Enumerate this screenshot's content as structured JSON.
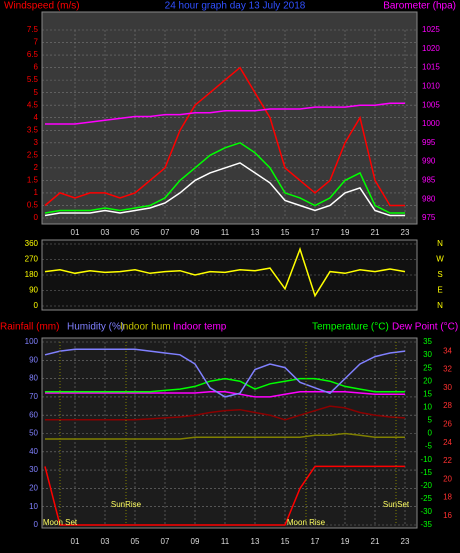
{
  "chart_data": [
    {
      "type": "line",
      "title": "24 hour graph day   13 July 2018",
      "ylabel": "Windspeed (m/s)",
      "y2label": "Barometer (hpa)",
      "x": [
        -1,
        0,
        1,
        2,
        3,
        4,
        5,
        6,
        7,
        8,
        9,
        10,
        11,
        12,
        13,
        14,
        15,
        16,
        17,
        18,
        19,
        20,
        21,
        22,
        23
      ],
      "xlim": [
        -1.2,
        23.8
      ],
      "xticks": [
        {
          "value": 1,
          "label": "01"
        },
        {
          "value": 3,
          "label": "03"
        },
        {
          "value": 5,
          "label": "05"
        },
        {
          "value": 7,
          "label": "07"
        },
        {
          "value": 9,
          "label": "09"
        },
        {
          "value": 11,
          "label": "11"
        },
        {
          "value": 13,
          "label": "13"
        },
        {
          "value": 15,
          "label": "15"
        },
        {
          "value": 17,
          "label": "17"
        },
        {
          "value": 19,
          "label": "19"
        },
        {
          "value": 21,
          "label": "21"
        },
        {
          "value": 23,
          "label": "23"
        }
      ],
      "ylim": [
        0,
        7.5
      ],
      "yticks": [
        0,
        0.5,
        1,
        1.5,
        2,
        2.5,
        3,
        3.5,
        4,
        4.5,
        5,
        5.5,
        6,
        6.5,
        7,
        7.5
      ],
      "y2lim": [
        975,
        1025
      ],
      "y2ticks": [
        975,
        980,
        985,
        990,
        995,
        1000,
        1005,
        1010,
        1015,
        1020,
        1025
      ],
      "grid": true,
      "series": [
        {
          "color": "#ff0000",
          "values": [
            0.5,
            1,
            0.8,
            1,
            1,
            0.8,
            1,
            1.5,
            2,
            3.5,
            4.5,
            5,
            5.5,
            6,
            5,
            4,
            2,
            1.5,
            1,
            1.5,
            3,
            4,
            1.5,
            0.5,
            0.5
          ]
        },
        {
          "color": "#ffffff",
          "values": [
            0.1,
            0.2,
            0.2,
            0.2,
            0.3,
            0.2,
            0.3,
            0.4,
            0.6,
            1,
            1.5,
            1.8,
            2,
            2.2,
            1.8,
            1.4,
            0.7,
            0.5,
            0.3,
            0.5,
            1,
            1.2,
            0.3,
            0.1,
            0.1
          ]
        },
        {
          "color": "#00ff00",
          "values": [
            0.2,
            0.3,
            0.3,
            0.3,
            0.4,
            0.3,
            0.4,
            0.5,
            0.8,
            1.5,
            2,
            2.5,
            2.8,
            3,
            2.6,
            2,
            1,
            0.8,
            0.5,
            0.8,
            1.5,
            1.8,
            0.5,
            0.2,
            0.2
          ]
        },
        {
          "color": "#ff00ff",
          "axis": "y2",
          "values": [
            1000,
            1000,
            1000,
            1000.5,
            1001,
            1001.5,
            1002,
            1002,
            1002.5,
            1002.5,
            1003,
            1003,
            1003.5,
            1003.5,
            1003.5,
            1004,
            1004,
            1004,
            1004.5,
            1004.5,
            1004.5,
            1005,
            1005,
            1005.5,
            1005.5
          ]
        }
      ]
    },
    {
      "type": "line",
      "x": [
        -1,
        0,
        1,
        2,
        3,
        4,
        5,
        6,
        7,
        8,
        9,
        10,
        11,
        12,
        13,
        14,
        15,
        16,
        17,
        18,
        19,
        20,
        21,
        22,
        23
      ],
      "xlim": [
        -1.2,
        23.8
      ],
      "ylim": [
        0,
        360
      ],
      "yticks": [
        0,
        90,
        180,
        270,
        360
      ],
      "grid": true,
      "compass": [
        "N",
        "W",
        "S",
        "E",
        "N"
      ],
      "series": [
        {
          "color": "#ffff00",
          "values": [
            200,
            210,
            190,
            205,
            195,
            200,
            210,
            190,
            200,
            205,
            180,
            200,
            195,
            210,
            205,
            220,
            100,
            330,
            60,
            200,
            190,
            210,
            200,
            215,
            200
          ]
        }
      ]
    },
    {
      "type": "line",
      "labels": [
        "Rainfall (mm)",
        "Humidity (%)",
        "Indoor hum",
        "Indoor temp",
        "Temperature (°C)",
        "Dew Point (°C)"
      ],
      "x": [
        -1,
        0,
        1,
        2,
        3,
        4,
        5,
        6,
        7,
        8,
        9,
        10,
        11,
        12,
        13,
        14,
        15,
        16,
        17,
        18,
        19,
        20,
        21,
        22,
        23
      ],
      "xlim": [
        -1.2,
        23.8
      ],
      "xticks": [
        {
          "value": 1,
          "label": "01"
        },
        {
          "value": 3,
          "label": "03"
        },
        {
          "value": 5,
          "label": "05"
        },
        {
          "value": 7,
          "label": "07"
        },
        {
          "value": 9,
          "label": "09"
        },
        {
          "value": 11,
          "label": "11"
        },
        {
          "value": 13,
          "label": "13"
        },
        {
          "value": 15,
          "label": "15"
        },
        {
          "value": 17,
          "label": "17"
        },
        {
          "value": 19,
          "label": "19"
        },
        {
          "value": 21,
          "label": "21"
        },
        {
          "value": 23,
          "label": "23"
        }
      ],
      "ylim": [
        0,
        100
      ],
      "yticks": [
        0,
        10,
        20,
        30,
        40,
        50,
        60,
        70,
        80,
        90,
        100
      ],
      "y2lim": [
        -35,
        35
      ],
      "y2ticks": [
        -35,
        -30,
        -25,
        -20,
        -15,
        -10,
        -5,
        0,
        5,
        10,
        15,
        20,
        25,
        30,
        35
      ],
      "y3lim": [
        15,
        35
      ],
      "y3ticks": [
        16,
        18,
        20,
        22,
        24,
        26,
        28,
        30,
        32,
        34
      ],
      "grid": true,
      "series": [
        {
          "color": "#ff0000",
          "values": [
            32,
            0,
            0,
            0,
            0,
            0,
            0,
            0,
            0,
            0,
            0,
            0,
            0,
            0,
            0,
            0,
            0,
            20,
            32,
            32,
            32,
            32,
            32,
            32,
            32
          ]
        },
        {
          "color": "#808000",
          "values": [
            47,
            47,
            47,
            47,
            47,
            47,
            47,
            47,
            47,
            47,
            48,
            48,
            48,
            48,
            48,
            48,
            48,
            48,
            49,
            49,
            50,
            49,
            48,
            48,
            48
          ]
        },
        {
          "color": "#8b0000",
          "axis": "y3",
          "values": [
            26.5,
            26.5,
            26.5,
            26.5,
            26.5,
            26.5,
            26.5,
            26.6,
            26.7,
            26.8,
            27,
            27.3,
            27.5,
            27.6,
            27.3,
            27,
            26.5,
            27,
            27.5,
            28,
            27.8,
            27.3,
            27,
            26.8,
            26.7
          ]
        },
        {
          "color": "#ff00ff",
          "axis": "y2",
          "values": [
            15.5,
            15.5,
            15.5,
            15.5,
            15.5,
            15.5,
            15.5,
            15.5,
            15.5,
            15.5,
            15.5,
            16,
            16,
            15,
            14,
            14,
            15,
            16,
            16,
            16,
            16,
            15.5,
            15,
            15,
            15
          ]
        },
        {
          "color": "#00ff00",
          "axis": "y2",
          "values": [
            16,
            16,
            16,
            16,
            16,
            16,
            16,
            16,
            16.5,
            17,
            18,
            20,
            21,
            20,
            17,
            19,
            20,
            21,
            21,
            20,
            18,
            17,
            16,
            16,
            16
          ]
        },
        {
          "color": "#8080ff",
          "values": [
            93,
            95,
            96,
            96,
            96,
            96,
            96,
            95,
            94,
            93,
            88,
            75,
            70,
            72,
            85,
            88,
            86,
            78,
            75,
            72,
            80,
            88,
            92,
            94,
            95
          ]
        }
      ],
      "annotations": [
        {
          "text": "Moon Set",
          "x": 0
        },
        {
          "text": "SunRise",
          "x": 4.4
        },
        {
          "text": "Moon Rise",
          "x": 16.4
        },
        {
          "text": "SunSet",
          "x": 22.4
        }
      ]
    }
  ]
}
